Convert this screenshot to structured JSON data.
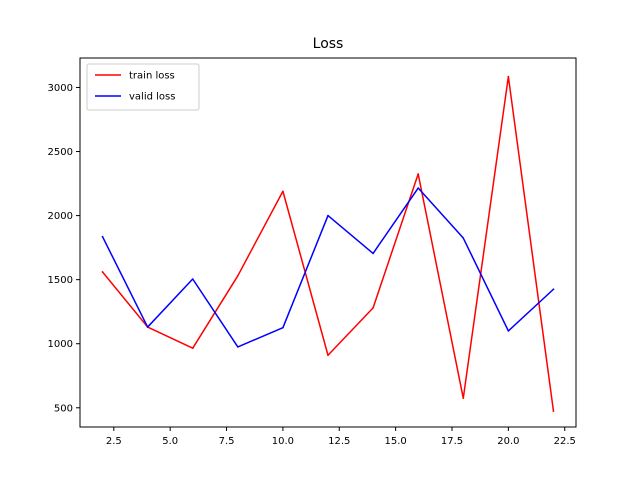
{
  "chart_data": {
    "type": "line",
    "title": "Loss",
    "xlabel": "",
    "ylabel": "",
    "xlim": [
      1.0,
      23.0
    ],
    "ylim": [
      350,
      3230
    ],
    "x_ticks": [
      2.5,
      5.0,
      7.5,
      10.0,
      12.5,
      15.0,
      17.5,
      20.0,
      22.5
    ],
    "x_tick_labels": [
      "2.5",
      "5.0",
      "7.5",
      "10.0",
      "12.5",
      "15.0",
      "17.5",
      "20.0",
      "22.5"
    ],
    "y_ticks": [
      500,
      1000,
      1500,
      2000,
      2500,
      3000
    ],
    "y_tick_labels": [
      "500",
      "1000",
      "1500",
      "2000",
      "2500",
      "3000"
    ],
    "grid": false,
    "legend_position": "top-left",
    "x": [
      2,
      4,
      6,
      8,
      10,
      12,
      14,
      16,
      18,
      20,
      22
    ],
    "series": [
      {
        "name": "train loss",
        "color": "#ff0000",
        "values": [
          1560,
          1130,
          965,
          1530,
          2190,
          910,
          1280,
          2325,
          575,
          3085,
          475
        ]
      },
      {
        "name": "valid loss",
        "color": "#0000ff",
        "values": [
          1835,
          1130,
          1505,
          975,
          1125,
          2000,
          1705,
          2215,
          1825,
          1100,
          1425
        ]
      }
    ]
  }
}
